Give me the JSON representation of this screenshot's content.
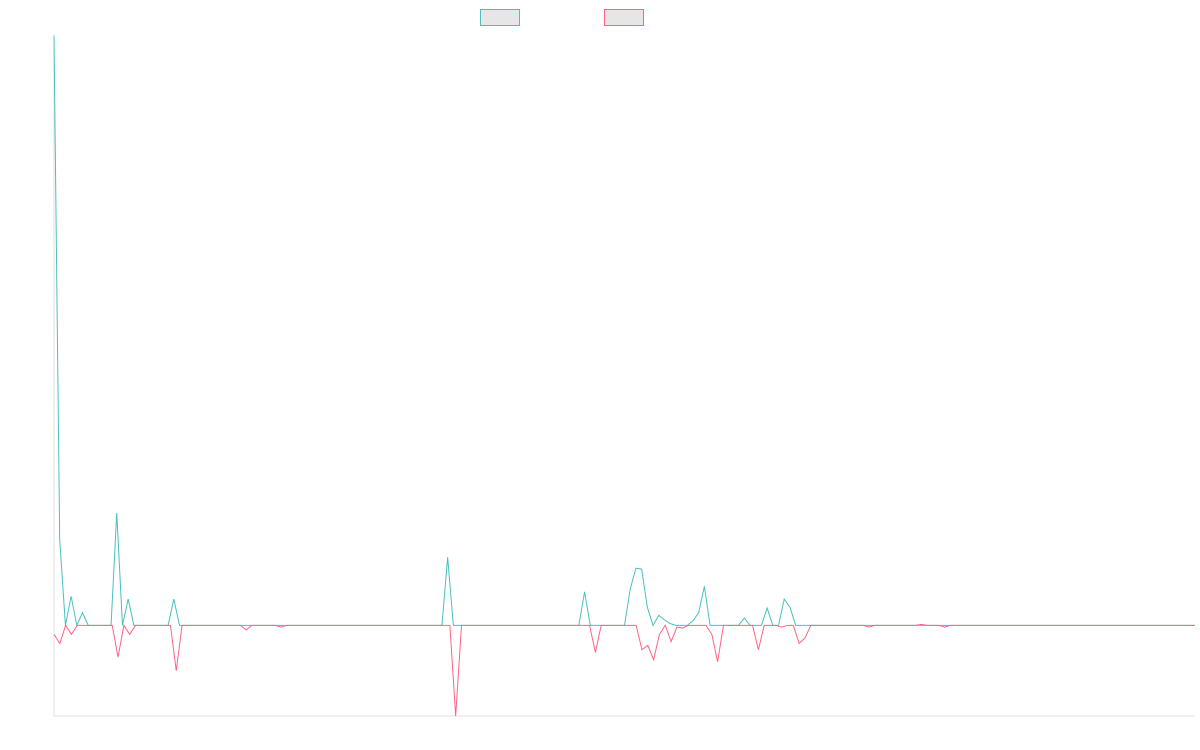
{
  "chart_data": {
    "type": "line",
    "title": "",
    "xlabel": "",
    "ylabel": "",
    "grid": false,
    "legend_position": "top",
    "ylim": [
      -100,
      650
    ],
    "series": [
      {
        "color": "#4bc0c0",
        "values": [
          650,
          95,
          0,
          32,
          0,
          14,
          0,
          0,
          0,
          0,
          0,
          124,
          0,
          29,
          0,
          0,
          0,
          0,
          0,
          0,
          0,
          29,
          0,
          0,
          0,
          0,
          0,
          0,
          0,
          0,
          0,
          0,
          0,
          0,
          0,
          0,
          0,
          0,
          0,
          0,
          0,
          0,
          0,
          0,
          0,
          0,
          0,
          0,
          0,
          0,
          0,
          0,
          0,
          0,
          0,
          0,
          0,
          0,
          0,
          0,
          0,
          0,
          0,
          0,
          0,
          0,
          0,
          0,
          0,
          75,
          0,
          0,
          0,
          0,
          0,
          0,
          0,
          0,
          0,
          0,
          0,
          0,
          0,
          0,
          0,
          0,
          0,
          0,
          0,
          0,
          0,
          0,
          0,
          37,
          0,
          0,
          0,
          0,
          0,
          0,
          0,
          40,
          63,
          62,
          20,
          0,
          11,
          6,
          2,
          0,
          0,
          0,
          5,
          14,
          43,
          0,
          0,
          0,
          0,
          0,
          0,
          8,
          0,
          0,
          0,
          19,
          0,
          0,
          29,
          20,
          0,
          0,
          0,
          0,
          0,
          0,
          0,
          0,
          0,
          0,
          0,
          0,
          0,
          0,
          0,
          0,
          0,
          0,
          0,
          0,
          0,
          0,
          0,
          0,
          0,
          0,
          0,
          0,
          0,
          0,
          0,
          0,
          0,
          0,
          0,
          0,
          0,
          0,
          0,
          0,
          0,
          0,
          0,
          0,
          0,
          0,
          0,
          0,
          0,
          0,
          0,
          0,
          0,
          0,
          0,
          0,
          0,
          0,
          0,
          0,
          0,
          0,
          0,
          0,
          0,
          0,
          0,
          0,
          0,
          0,
          0
        ]
      },
      {
        "color": "#ff6384",
        "values": [
          -10,
          -20,
          0,
          -10,
          0,
          0,
          0,
          0,
          0,
          0,
          0,
          -35,
          0,
          -10,
          0,
          0,
          0,
          0,
          0,
          0,
          0,
          -50,
          0,
          0,
          0,
          0,
          0,
          0,
          0,
          0,
          0,
          0,
          0,
          -5,
          0,
          0,
          0,
          0,
          0,
          -2,
          0,
          0,
          0,
          0,
          0,
          0,
          0,
          0,
          0,
          0,
          0,
          0,
          0,
          0,
          0,
          0,
          0,
          0,
          0,
          0,
          0,
          0,
          0,
          0,
          0,
          0,
          0,
          0,
          0,
          -100,
          0,
          0,
          0,
          0,
          0,
          0,
          0,
          0,
          0,
          0,
          0,
          0,
          0,
          0,
          0,
          0,
          0,
          0,
          0,
          0,
          0,
          0,
          0,
          -30,
          0,
          0,
          0,
          0,
          0,
          0,
          0,
          -27,
          -22,
          -38,
          -10,
          0,
          -18,
          -2,
          -3,
          0,
          0,
          0,
          0,
          -10,
          -40,
          0,
          0,
          0,
          0,
          0,
          0,
          -27,
          0,
          0,
          0,
          -2,
          0,
          0,
          -20,
          -14,
          0,
          0,
          0,
          0,
          0,
          0,
          0,
          0,
          0,
          0,
          -2,
          0,
          0,
          0,
          0,
          0,
          0,
          0,
          0,
          1,
          0,
          0,
          0,
          -2,
          0,
          0,
          0,
          0,
          0,
          0,
          0,
          0,
          0,
          0,
          0,
          0,
          0,
          0,
          0,
          0,
          0,
          0,
          0,
          0,
          0,
          0,
          0,
          0,
          0,
          0,
          0,
          0,
          0,
          0,
          0,
          0,
          0,
          0,
          0,
          0,
          0,
          0,
          0,
          0,
          0,
          0,
          0
        ]
      }
    ]
  },
  "legend": {
    "items": [
      {
        "label": "",
        "border_color": "#4bc0c0",
        "fill_color": "#e6e6e6"
      },
      {
        "label": "",
        "border_color": "#ff6384",
        "fill_color": "#e6e6e6"
      }
    ]
  },
  "axis_color": "#e0e0e0"
}
